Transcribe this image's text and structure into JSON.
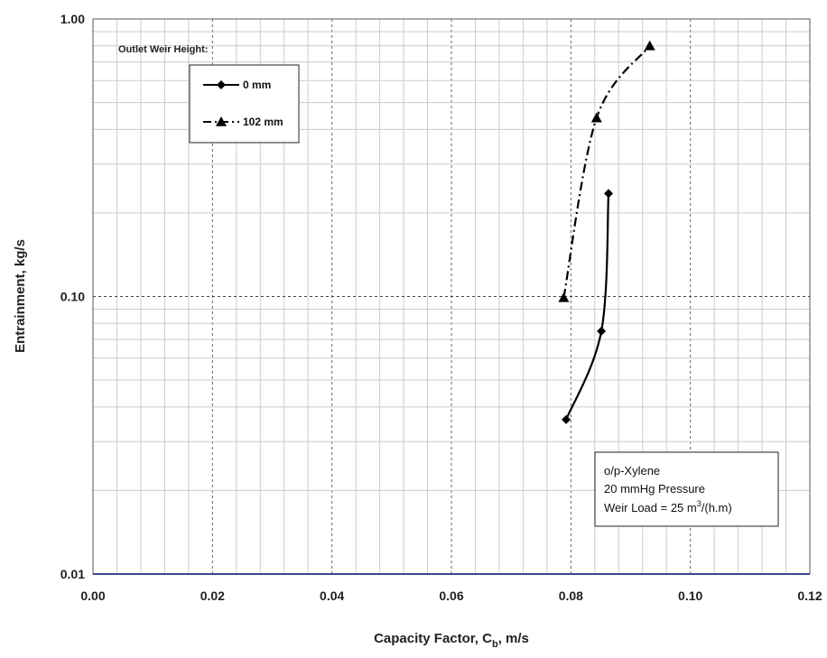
{
  "chart_data": {
    "type": "line",
    "xlabel_main": "Capacity Factor, C",
    "xlabel_sub": "b",
    "xlabel_tail": ", m/s",
    "ylabel": "Entrainment,  kg/s",
    "xlim": [
      0.0,
      0.12
    ],
    "ylim": [
      0.01,
      1.0
    ],
    "yscale": "log",
    "x_ticks": [
      "0.00",
      "0.02",
      "0.04",
      "0.06",
      "0.08",
      "0.10",
      "0.12"
    ],
    "y_ticks": [
      "0.01",
      "0.10",
      "1.00"
    ],
    "grid": true,
    "legend_title": "Outlet Weir Height:",
    "legend_position": "top-left",
    "series": [
      {
        "name": "0 mm",
        "marker": "diamond",
        "line_style": "solid",
        "color": "#000000",
        "points": [
          [
            0.0792,
            0.036
          ],
          [
            0.0851,
            0.075
          ],
          [
            0.0863,
            0.235
          ]
        ]
      },
      {
        "name": "102 mm",
        "marker": "triangle",
        "line_style": "dash-dot",
        "color": "#000000",
        "points": [
          [
            0.0788,
            0.099
          ],
          [
            0.0843,
            0.44
          ],
          [
            0.0932,
            0.8
          ]
        ]
      }
    ],
    "annotation": {
      "line1": "o/p-Xylene",
      "line2": "20 mmHg Pressure",
      "line3_main": "Weir Load = 25 m",
      "line3_sup": "3",
      "line3_tail": "/(h.m)"
    }
  }
}
